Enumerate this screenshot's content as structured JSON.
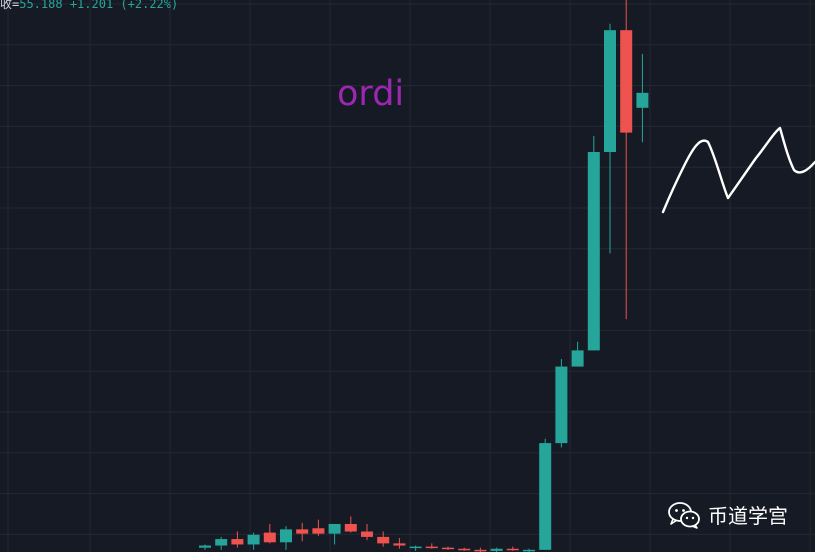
{
  "header": {
    "close_label": "收=",
    "close_value": "55.188",
    "change": "+1.201",
    "change_pct": "(+2.22%)"
  },
  "annotation_text": "ordi",
  "watermark_text": "币道学宫",
  "watermark_icon": "wechat-icon",
  "colors": {
    "background": "#161a25",
    "grid": "#242833",
    "up": "#26a69a",
    "down": "#ef5350",
    "annotation": "#9c27b0",
    "drawing": "#ffffff"
  },
  "chart_data": {
    "type": "candlestick",
    "title": "",
    "xlabel": "",
    "ylabel": "",
    "ylim": [
      13,
      63
    ],
    "last_close": 55.188,
    "change": 1.201,
    "change_pct": 2.22,
    "grid": true,
    "candles": [
      {
        "open": 13.0,
        "high": 13.3,
        "low": 12.8,
        "close": 13.2
      },
      {
        "open": 13.2,
        "high": 14.0,
        "low": 12.8,
        "close": 13.8
      },
      {
        "open": 13.8,
        "high": 14.5,
        "low": 13.0,
        "close": 13.3
      },
      {
        "open": 13.3,
        "high": 14.4,
        "low": 12.8,
        "close": 14.2
      },
      {
        "open": 14.4,
        "high": 15.2,
        "low": 13.4,
        "close": 13.5
      },
      {
        "open": 13.5,
        "high": 15.0,
        "low": 12.8,
        "close": 14.7
      },
      {
        "open": 14.7,
        "high": 15.3,
        "low": 13.6,
        "close": 14.3
      },
      {
        "open": 14.8,
        "high": 15.6,
        "low": 14.1,
        "close": 14.3
      },
      {
        "open": 14.3,
        "high": 15.0,
        "low": 13.3,
        "close": 15.2
      },
      {
        "open": 15.2,
        "high": 15.9,
        "low": 14.4,
        "close": 14.5
      },
      {
        "open": 14.5,
        "high": 15.2,
        "low": 13.7,
        "close": 14.0
      },
      {
        "open": 14.0,
        "high": 14.5,
        "low": 13.1,
        "close": 13.4
      },
      {
        "open": 13.4,
        "high": 13.9,
        "low": 12.9,
        "close": 13.2
      },
      {
        "open": 13.0,
        "high": 13.2,
        "low": 12.7,
        "close": 13.1
      },
      {
        "open": 13.1,
        "high": 13.4,
        "low": 12.9,
        "close": 13.0
      },
      {
        "open": 13.0,
        "high": 13.1,
        "low": 12.8,
        "close": 12.9
      },
      {
        "open": 12.9,
        "high": 13.0,
        "low": 12.7,
        "close": 12.8
      },
      {
        "open": 12.8,
        "high": 13.0,
        "low": 12.6,
        "close": 12.7
      },
      {
        "open": 12.7,
        "high": 13.0,
        "low": 12.5,
        "close": 12.9
      },
      {
        "open": 12.9,
        "high": 13.1,
        "low": 12.7,
        "close": 12.8
      },
      {
        "open": 12.8,
        "high": 12.9,
        "low": 12.6,
        "close": 12.8
      },
      {
        "open": 12.8,
        "high": 23.1,
        "low": 12.8,
        "close": 22.7
      },
      {
        "open": 22.7,
        "high": 30.5,
        "low": 22.3,
        "close": 29.8
      },
      {
        "open": 29.8,
        "high": 32.1,
        "low": 29.8,
        "close": 31.3
      },
      {
        "open": 31.3,
        "high": 51.2,
        "low": 31.3,
        "close": 49.7
      },
      {
        "open": 49.7,
        "high": 61.6,
        "low": 40.3,
        "close": 61.0
      },
      {
        "open": 61.0,
        "high": 67.0,
        "low": 34.2,
        "close": 51.5
      },
      {
        "open": 53.8,
        "high": 58.8,
        "low": 50.6,
        "close": 55.188
      }
    ],
    "annotations": [
      "ordi"
    ]
  }
}
